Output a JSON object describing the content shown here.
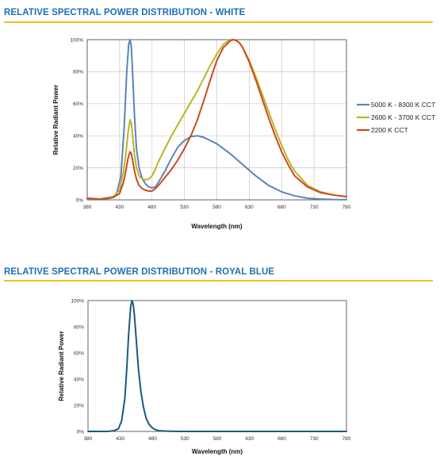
{
  "charts": [
    {
      "section_title": "RELATIVE SPECTRAL POWER DISTRIBUTION - WHITE",
      "chart_data": {
        "type": "line",
        "xlabel": "Wavelength (nm)",
        "ylabel": "Relative Radiant Power",
        "xlim": [
          380,
          780
        ],
        "ylim": [
          0,
          100
        ],
        "xticks": [
          "380",
          "430",
          "480",
          "530",
          "580",
          "630",
          "680",
          "730",
          "780"
        ],
        "yticks": [
          "0%",
          "20%",
          "40%",
          "60%",
          "80%",
          "100%"
        ],
        "grid": true,
        "legend_position": "right",
        "series": [
          {
            "name": "5000 K - 8300 K CCT",
            "color": "#5b84b8",
            "x": [
              380,
              400,
              415,
              425,
              432,
              437,
              441,
              444,
              446,
              448,
              450,
              453,
              456,
              460,
              465,
              470,
              475,
              480,
              485,
              490,
              500,
              510,
              520,
              530,
              540,
              550,
              560,
              570,
              580,
              600,
              620,
              640,
              660,
              680,
              700,
              720,
              740,
              760,
              780
            ],
            "y": [
              0.5,
              0.5,
              1,
              3,
              15,
              45,
              80,
              97,
              100,
              96,
              80,
              52,
              32,
              20,
              13,
              10,
              8,
              7.5,
              8,
              11,
              18,
              26,
              33,
              37,
              39.5,
              40,
              39,
              37,
              35,
              29,
              22,
              15,
              9,
              5,
              2.5,
              1,
              0.5,
              0.2,
              0.1
            ]
          },
          {
            "name": "2600 K - 3700 K CCT",
            "color": "#b9b527",
            "x": [
              380,
              400,
              420,
              430,
              436,
              440,
              443,
              446,
              448,
              450,
              453,
              456,
              460,
              465,
              470,
              475,
              480,
              485,
              490,
              500,
              510,
              520,
              530,
              540,
              550,
              560,
              570,
              580,
              590,
              600,
              605,
              610,
              615,
              620,
              630,
              640,
              650,
              660,
              670,
              680,
              690,
              700,
              720,
              740,
              760,
              780
            ],
            "y": [
              1,
              0.5,
              2,
              6,
              18,
              30,
              42,
              50,
              48,
              40,
              28,
              20,
              15,
              13,
              12.5,
              13,
              15,
              19,
              24,
              32,
              40,
              47,
              54,
              61,
              68,
              76,
              84,
              91,
              97,
              100,
              100,
              99.5,
              98,
              95,
              87,
              77,
              66,
              55,
              44,
              34,
              25,
              18,
              9,
              5,
              3,
              2
            ]
          },
          {
            "name": "2200 K CCT",
            "color": "#cc4a1e",
            "x": [
              380,
              400,
              420,
              430,
              436,
              440,
              443,
              446,
              448,
              450,
              453,
              456,
              460,
              465,
              470,
              475,
              480,
              485,
              490,
              500,
              510,
              520,
              530,
              540,
              550,
              560,
              570,
              580,
              590,
              600,
              605,
              610,
              615,
              620,
              630,
              640,
              650,
              660,
              670,
              680,
              690,
              700,
              720,
              740,
              760,
              780
            ],
            "y": [
              1,
              0.5,
              1.5,
              4,
              11,
              19,
              26,
              30,
              29,
              25,
              18,
              13,
              9,
              7,
              6,
              5.5,
              5.5,
              7,
              9,
              14,
              19,
              25,
              32,
              40,
              50,
              62,
              75,
              87,
              95,
              99,
              100,
              99.5,
              98,
              95,
              86,
              75,
              63,
              51,
              40,
              30,
              22,
              15,
              8,
              4.5,
              3,
              2
            ]
          }
        ]
      }
    },
    {
      "section_title": "RELATIVE SPECTRAL POWER DISTRIBUTION - ROYAL BLUE",
      "chart_data": {
        "type": "line",
        "xlabel": "Wavelength (nm)",
        "ylabel": "Relative Radiant Power",
        "xlim": [
          380,
          780
        ],
        "ylim": [
          0,
          100
        ],
        "xticks": [
          "380",
          "430",
          "480",
          "530",
          "580",
          "630",
          "680",
          "730",
          "780"
        ],
        "yticks": [
          "0%",
          "20%",
          "40%",
          "60%",
          "80%",
          "100%"
        ],
        "grid": false,
        "legend_position": "none",
        "series": [
          {
            "name": "",
            "color": "#1a5a7e",
            "x": [
              380,
              410,
              420,
              427,
              432,
              437,
              440,
              443,
              446,
              448,
              450,
              452,
              455,
              458,
              462,
              466,
              470,
              475,
              480,
              485,
              490,
              500,
              520,
              780
            ],
            "y": [
              0,
              0,
              0.5,
              2,
              8,
              25,
              48,
              75,
              95,
              100,
              97,
              88,
              68,
              48,
              30,
              18,
              10,
              5,
              2.5,
              1.2,
              0.5,
              0.2,
              0,
              0
            ]
          }
        ]
      }
    }
  ]
}
